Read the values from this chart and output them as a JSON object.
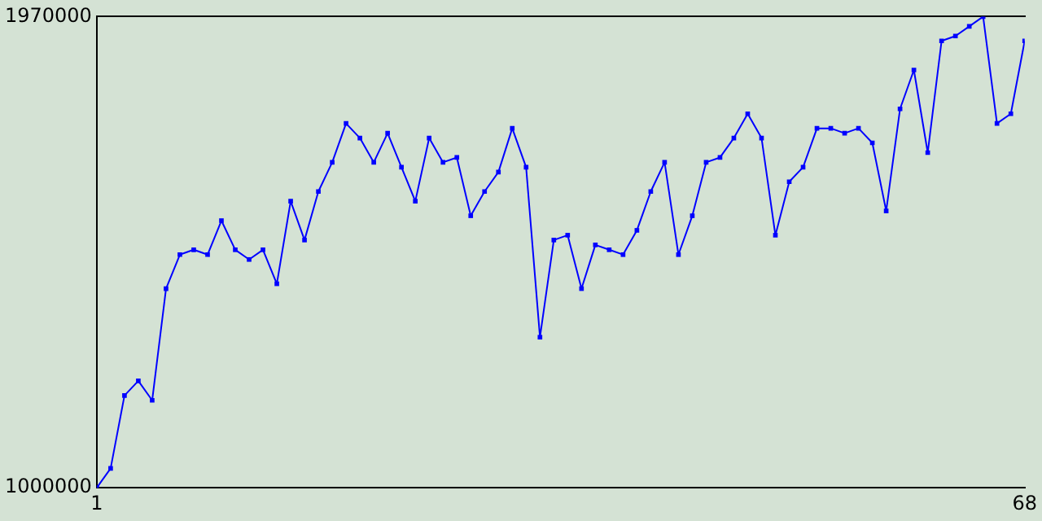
{
  "chart_data": {
    "type": "line",
    "marker": "square",
    "line_style": "solid",
    "grid": false,
    "legend": false,
    "x": [
      1,
      2,
      3,
      4,
      5,
      6,
      7,
      8,
      9,
      10,
      11,
      12,
      13,
      14,
      15,
      16,
      17,
      18,
      19,
      20,
      21,
      22,
      23,
      24,
      25,
      26,
      27,
      28,
      29,
      30,
      31,
      32,
      33,
      34,
      35,
      36,
      37,
      38,
      39,
      40,
      41,
      42,
      43,
      44,
      45,
      46,
      47,
      48,
      49,
      50,
      51,
      52,
      53,
      54,
      55,
      56,
      57,
      58,
      59,
      60,
      61,
      62,
      63,
      64,
      65,
      66,
      67,
      68
    ],
    "series": [
      {
        "color": "#0000ff",
        "values": [
          1000000,
          1040000,
          1190000,
          1220000,
          1180000,
          1410000,
          1480000,
          1490000,
          1480000,
          1550000,
          1490000,
          1470000,
          1490000,
          1420000,
          1590000,
          1510000,
          1610000,
          1670000,
          1750000,
          1720000,
          1670000,
          1730000,
          1660000,
          1590000,
          1720000,
          1670000,
          1680000,
          1560000,
          1610000,
          1650000,
          1740000,
          1660000,
          1310000,
          1510000,
          1520000,
          1410000,
          1500000,
          1490000,
          1480000,
          1530000,
          1610000,
          1670000,
          1480000,
          1560000,
          1670000,
          1680000,
          1720000,
          1770000,
          1720000,
          1520000,
          1630000,
          1660000,
          1740000,
          1740000,
          1730000,
          1740000,
          1710000,
          1570000,
          1780000,
          1860000,
          1690000,
          1920000,
          1930000,
          1950000,
          1970000,
          1750000,
          1770000,
          1920000
        ]
      }
    ],
    "xlim": [
      1,
      68
    ],
    "xticks": [
      1,
      68
    ],
    "ylim": [
      1000000,
      1970000
    ],
    "yticks": [
      1000000,
      1970000
    ]
  }
}
